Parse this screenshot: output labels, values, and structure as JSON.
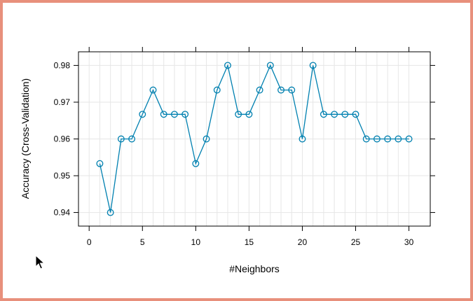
{
  "chart_data": {
    "type": "line",
    "xlabel": "#Neighbors",
    "ylabel": "Accuracy (Cross-Validation)",
    "xlim": [
      -1,
      32
    ],
    "ylim": [
      0.9363,
      0.9837
    ],
    "xticks": [
      0,
      5,
      10,
      15,
      20,
      25,
      30
    ],
    "yticks": [
      0.94,
      0.95,
      0.96,
      0.97,
      0.98
    ],
    "grid": true,
    "series_color": "#0080b0",
    "series": [
      {
        "x": [
          1,
          2,
          3,
          4,
          5,
          6,
          7,
          8,
          9,
          10,
          11,
          12,
          13,
          14,
          15,
          16,
          17,
          18,
          19,
          20,
          21,
          22,
          23,
          24,
          25,
          26,
          27,
          28,
          29,
          30
        ],
        "values": [
          0.9533,
          0.94,
          0.96,
          0.96,
          0.9667,
          0.9733,
          0.9667,
          0.9667,
          0.9667,
          0.9533,
          0.96,
          0.9733,
          0.98,
          0.9667,
          0.9667,
          0.9733,
          0.98,
          0.9733,
          0.9733,
          0.96,
          0.98,
          0.9667,
          0.9667,
          0.9667,
          0.9667,
          0.96,
          0.96,
          0.96,
          0.96,
          0.96
        ]
      }
    ]
  }
}
